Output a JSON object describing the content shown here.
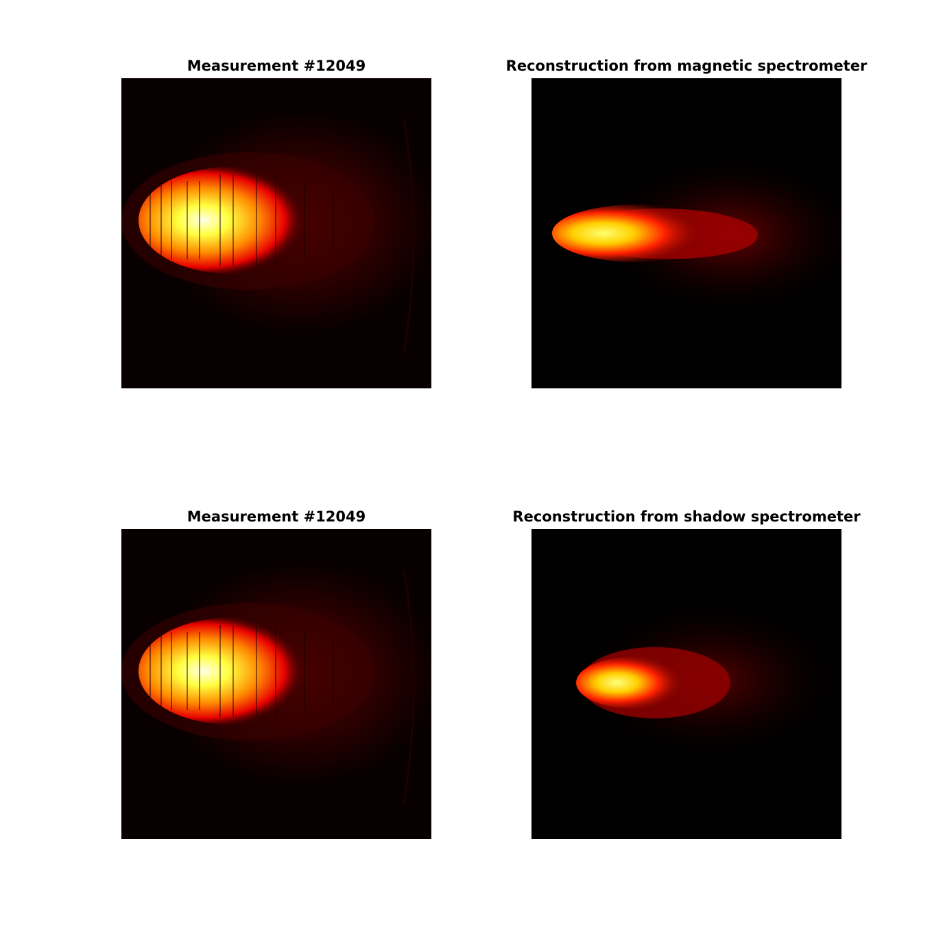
{
  "figure": {
    "panels": [
      {
        "title": "Measurement #12049",
        "kind": "measurement"
      },
      {
        "title": "Reconstruction from magnetic spectrometer",
        "kind": "reconstruction-magnetic"
      },
      {
        "title": "Measurement #12049",
        "kind": "measurement"
      },
      {
        "title": "Reconstruction from shadow spectrometer",
        "kind": "reconstruction-shadow"
      }
    ],
    "colormap": "hot",
    "colors": {
      "background": "#000000",
      "mid": "#ff0000",
      "high": "#ffff00",
      "peak": "#ffffff"
    }
  }
}
